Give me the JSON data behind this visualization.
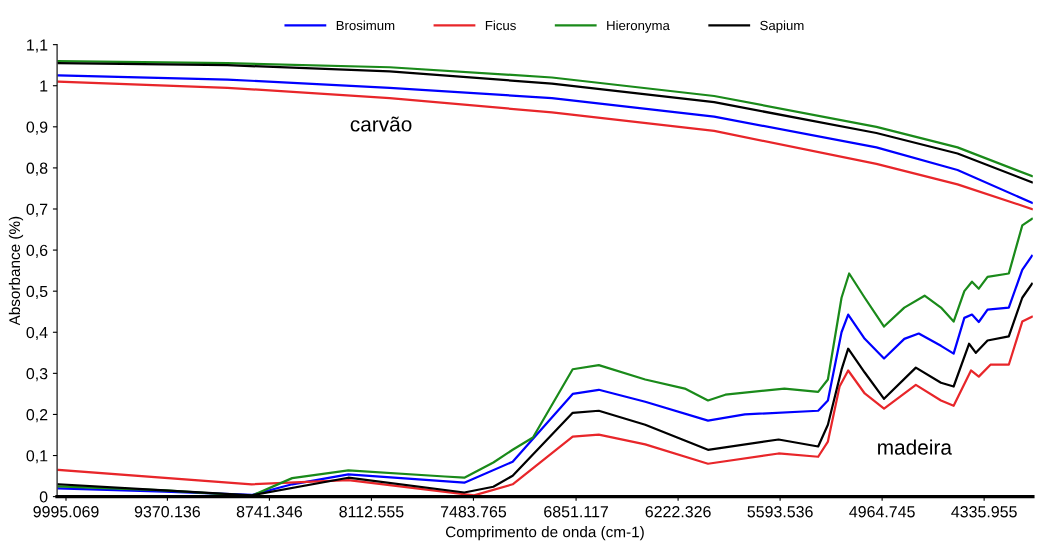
{
  "chart_data": {
    "type": "line",
    "xlabel": "Comprimento de onda (cm-1)",
    "ylabel": "Absorbance (%)",
    "xlim": [
      10050,
      4036
    ],
    "ylim": [
      0,
      1.1
    ],
    "xticks": [
      9995.069,
      9370.136,
      8741.346,
      8112.555,
      7483.765,
      6851.117,
      6222.326,
      5593.536,
      4964.745,
      4335.955
    ],
    "yticks": [
      {
        "value": 0,
        "label": "0"
      },
      {
        "value": 0.1,
        "label": "0,1"
      },
      {
        "value": 0.2,
        "label": "0,2"
      },
      {
        "value": 0.3,
        "label": "0,3"
      },
      {
        "value": 0.4,
        "label": "0,4"
      },
      {
        "value": 0.5,
        "label": "0,5"
      },
      {
        "value": 0.6,
        "label": "0,6"
      },
      {
        "value": 0.7,
        "label": "0,7"
      },
      {
        "value": 0.8,
        "label": "0,8"
      },
      {
        "value": 0.9,
        "label": "0,9"
      },
      {
        "value": 1,
        "label": "1"
      },
      {
        "value": 1.1,
        "label": "1,1"
      }
    ],
    "grid": false,
    "legend": "top",
    "marker": "none",
    "line_style": "solid",
    "annotations": [
      "carvão",
      "madeira"
    ],
    "series": [
      {
        "name": "Brosimum",
        "color": "#0000ff",
        "x": [
          10040,
          9000,
          8000,
          7000,
          6000,
          5000,
          4500,
          4041
        ],
        "values": [
          1.025,
          1.015,
          0.995,
          0.97,
          0.925,
          0.85,
          0.795,
          0.715
        ]
      },
      {
        "name": "Ficus",
        "color": "#e8262a",
        "x": [
          10040,
          9000,
          8000,
          7000,
          6000,
          5000,
          4500,
          4041
        ],
        "values": [
          1.01,
          0.995,
          0.97,
          0.935,
          0.89,
          0.81,
          0.76,
          0.7
        ]
      },
      {
        "name": "Hieronyma",
        "color": "#1a8a1a",
        "x": [
          10040,
          9000,
          8000,
          7000,
          6000,
          5000,
          4500,
          4041
        ],
        "values": [
          1.06,
          1.055,
          1.045,
          1.02,
          0.975,
          0.9,
          0.85,
          0.78
        ]
      },
      {
        "name": "Sapium",
        "color": "#000000",
        "x": [
          10040,
          9000,
          8000,
          7000,
          6000,
          5000,
          4500,
          4041
        ],
        "values": [
          1.055,
          1.05,
          1.035,
          1.005,
          0.96,
          0.885,
          0.835,
          0.765
        ]
      },
      {
        "color": "#0000ff",
        "x": [
          10040,
          9387,
          8851,
          8601,
          8255,
          7540,
          7242,
          6872,
          6711,
          6425,
          6038,
          5811,
          5359,
          5299,
          5215,
          5174,
          5072,
          4953,
          4828,
          4739,
          4602,
          4524,
          4458,
          4411,
          4369,
          4315,
          4184,
          4101,
          4041
        ],
        "values": [
          0.02,
          0.012,
          0.004,
          0.03,
          0.054,
          0.034,
          0.085,
          0.25,
          0.26,
          0.231,
          0.185,
          0.2,
          0.209,
          0.234,
          0.4,
          0.443,
          0.384,
          0.336,
          0.384,
          0.397,
          0.367,
          0.348,
          0.435,
          0.443,
          0.425,
          0.455,
          0.46,
          0.552,
          0.586
        ]
      },
      {
        "color": "#e8262a",
        "x": [
          10040,
          8851,
          8255,
          7480,
          7242,
          6872,
          6711,
          6425,
          6038,
          5603,
          5359,
          5299,
          5227,
          5174,
          5072,
          4953,
          4757,
          4602,
          4524,
          4417,
          4369,
          4297,
          4184,
          4101,
          4041
        ],
        "values": [
          0.065,
          0.03,
          0.04,
          0.003,
          0.03,
          0.146,
          0.151,
          0.127,
          0.08,
          0.105,
          0.097,
          0.134,
          0.268,
          0.307,
          0.251,
          0.214,
          0.272,
          0.234,
          0.221,
          0.307,
          0.292,
          0.321,
          0.321,
          0.426,
          0.438
        ]
      },
      {
        "color": "#1a8a1a",
        "x": [
          10040,
          9387,
          8851,
          8601,
          8255,
          7660,
          7540,
          7361,
          7242,
          7117,
          6872,
          6711,
          6425,
          6181,
          6038,
          5931,
          5567,
          5359,
          5299,
          5215,
          5168,
          5072,
          4953,
          4828,
          4703,
          4602,
          4524,
          4458,
          4411,
          4369,
          4315,
          4184,
          4101,
          4041
        ],
        "values": [
          0.025,
          0.015,
          0.002,
          0.045,
          0.064,
          0.049,
          0.046,
          0.083,
          0.114,
          0.144,
          0.31,
          0.32,
          0.285,
          0.263,
          0.234,
          0.248,
          0.263,
          0.255,
          0.285,
          0.484,
          0.543,
          0.484,
          0.414,
          0.46,
          0.489,
          0.46,
          0.426,
          0.5,
          0.523,
          0.506,
          0.535,
          0.543,
          0.66,
          0.676
        ]
      },
      {
        "color": "#000000",
        "x": [
          10040,
          9387,
          8851,
          8255,
          7540,
          7361,
          7242,
          6872,
          6711,
          6425,
          6038,
          5603,
          5359,
          5299,
          5215,
          5174,
          5072,
          4953,
          4757,
          4602,
          4524,
          4429,
          4387,
          4315,
          4184,
          4101,
          4041
        ],
        "values": [
          0.03,
          0.015,
          0.003,
          0.046,
          0.01,
          0.024,
          0.051,
          0.204,
          0.209,
          0.175,
          0.114,
          0.139,
          0.122,
          0.175,
          0.309,
          0.36,
          0.302,
          0.238,
          0.314,
          0.277,
          0.268,
          0.372,
          0.35,
          0.38,
          0.39,
          0.484,
          0.518
        ]
      }
    ]
  }
}
